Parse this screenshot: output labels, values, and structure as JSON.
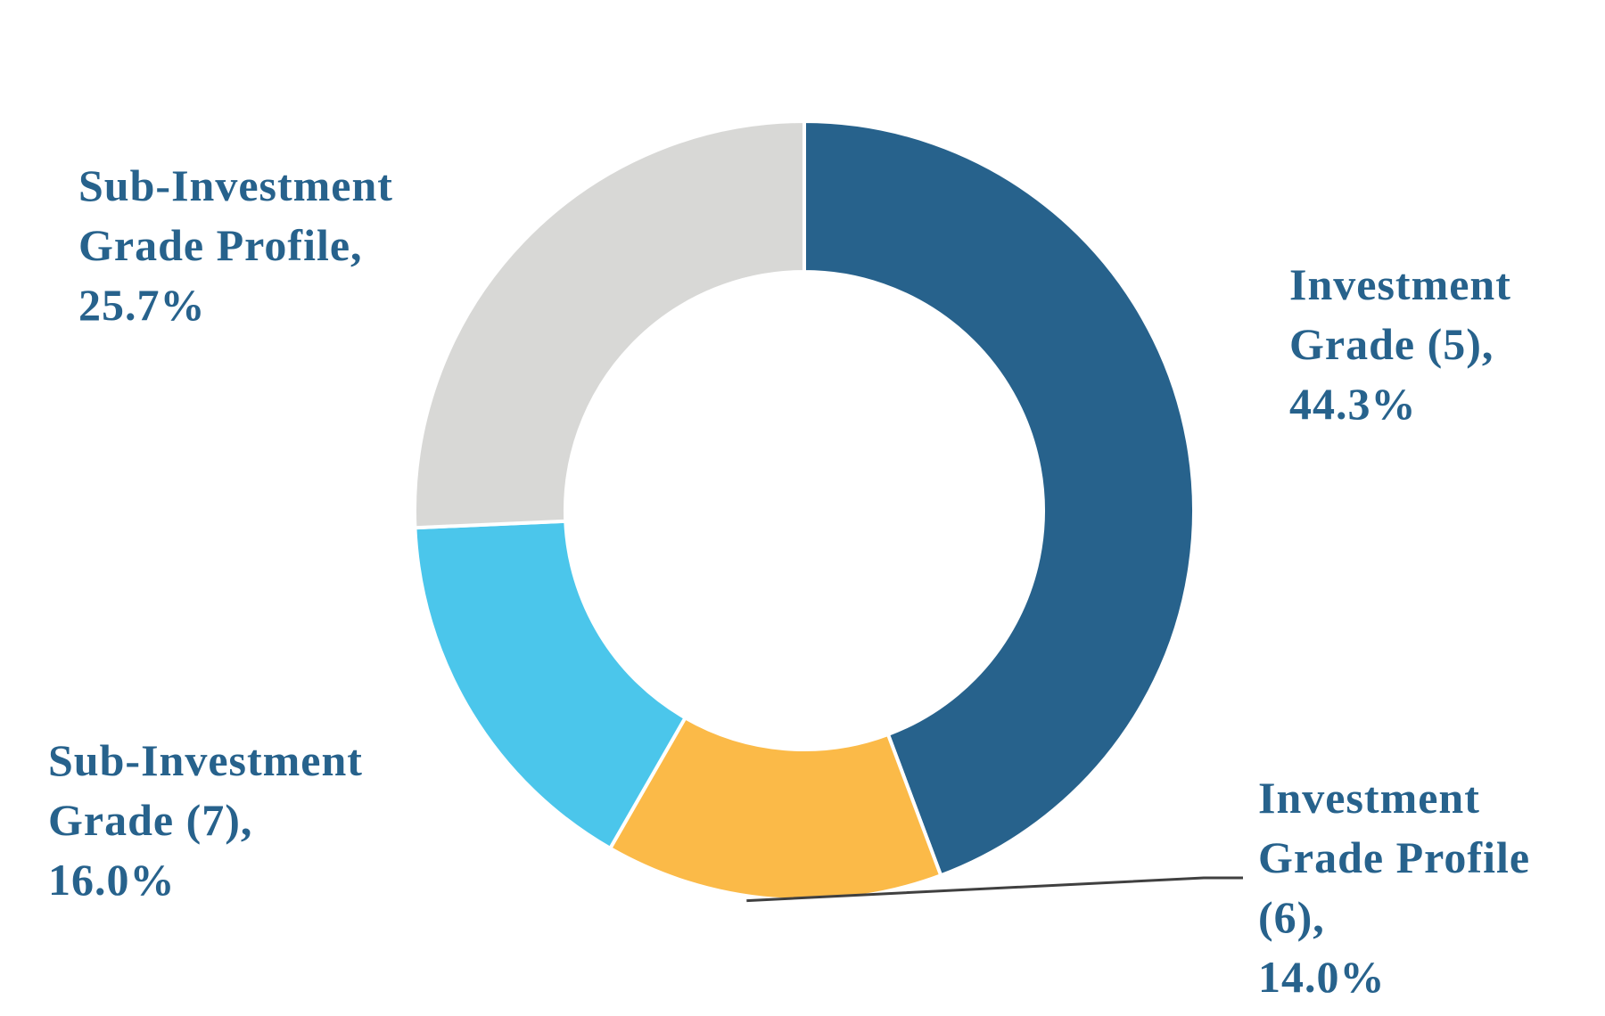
{
  "chart_data": {
    "type": "pie",
    "variant": "donut",
    "title": "",
    "slices": [
      {
        "name": "Investment Grade (5)",
        "value": 44.3,
        "label_lines": [
          "Investment",
          "Grade (5),",
          "44.3%"
        ],
        "color": "#27628C"
      },
      {
        "name": "Investment Grade Profile (6)",
        "value": 14.0,
        "label_lines": [
          "Investment",
          "Grade Profile",
          "(6),",
          "14.0%"
        ],
        "color": "#FBBA48"
      },
      {
        "name": "Sub-Investment Grade (7)",
        "value": 16.0,
        "label_lines": [
          "Sub-Investment",
          "Grade (7),",
          "16.0%"
        ],
        "color": "#4BC6EB"
      },
      {
        "name": "Sub-Investment Grade Profile",
        "value": 25.7,
        "label_lines": [
          "Sub-Investment",
          "Grade Profile,",
          "25.7%"
        ],
        "color": "#D8D8D6"
      }
    ],
    "label_color": "#27628C",
    "leader_line_color": "#404040",
    "start_angle": "top",
    "direction": "clockwise"
  }
}
